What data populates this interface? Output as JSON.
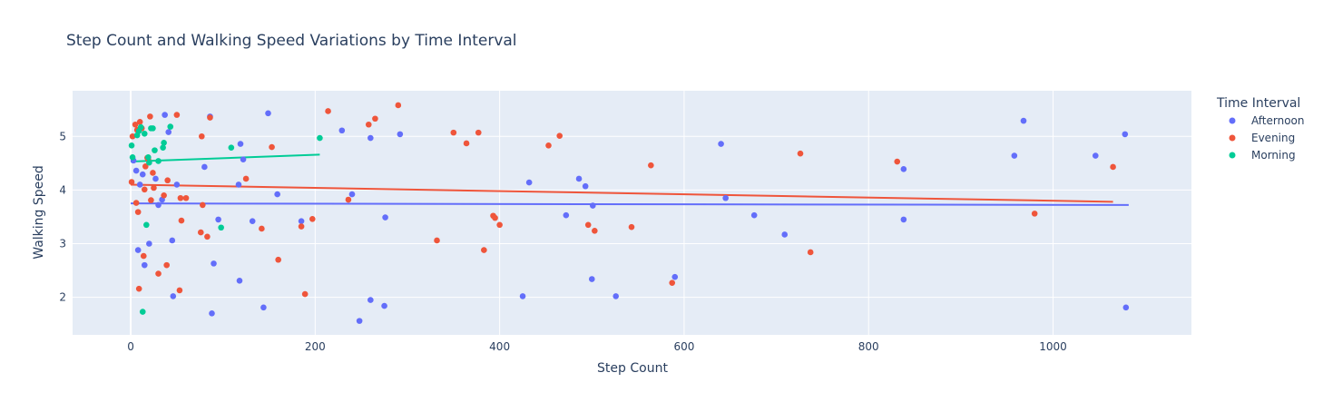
{
  "chart_data": {
    "type": "scatter",
    "title": "Step Count and Walking Speed Variations by Time Interval",
    "xlabel": "Step Count",
    "ylabel": "Walking Speed",
    "xlim": [
      -63,
      1150
    ],
    "ylim": [
      1.3,
      5.85
    ],
    "xticks": [
      0,
      200,
      400,
      600,
      800,
      1000
    ],
    "yticks": [
      2,
      3,
      4,
      5
    ],
    "grid": true,
    "legend_title": "Time Interval",
    "legend_position": "top-right",
    "series": [
      {
        "name": "Afternoon",
        "color": "#636efa",
        "points": [
          [
            3,
            4.55
          ],
          [
            6,
            4.36
          ],
          [
            8,
            2.88
          ],
          [
            10,
            4.1
          ],
          [
            13,
            4.29
          ],
          [
            15,
            2.6
          ],
          [
            20,
            3.0
          ],
          [
            27,
            4.21
          ],
          [
            30,
            3.72
          ],
          [
            34,
            3.82
          ],
          [
            37,
            5.4
          ],
          [
            41,
            5.08
          ],
          [
            45,
            3.06
          ],
          [
            46,
            2.02
          ],
          [
            50,
            4.1
          ],
          [
            80,
            4.43
          ],
          [
            86,
            5.37
          ],
          [
            88,
            1.7
          ],
          [
            90,
            2.63
          ],
          [
            95,
            3.45
          ],
          [
            117,
            4.1
          ],
          [
            118,
            2.31
          ],
          [
            119,
            4.86
          ],
          [
            122,
            4.57
          ],
          [
            132,
            3.42
          ],
          [
            144,
            1.81
          ],
          [
            149,
            5.43
          ],
          [
            159,
            3.92
          ],
          [
            185,
            3.42
          ],
          [
            229,
            5.11
          ],
          [
            240,
            3.92
          ],
          [
            248,
            1.56
          ],
          [
            260,
            1.95
          ],
          [
            260,
            4.97
          ],
          [
            275,
            1.84
          ],
          [
            276,
            3.49
          ],
          [
            292,
            5.04
          ],
          [
            425,
            2.02
          ],
          [
            432,
            4.14
          ],
          [
            472,
            3.53
          ],
          [
            486,
            4.21
          ],
          [
            493,
            4.07
          ],
          [
            500,
            2.34
          ],
          [
            501,
            3.71
          ],
          [
            526,
            2.02
          ],
          [
            590,
            2.38
          ],
          [
            640,
            4.86
          ],
          [
            645,
            3.85
          ],
          [
            676,
            3.53
          ],
          [
            709,
            3.17
          ],
          [
            838,
            4.39
          ],
          [
            838,
            3.45
          ],
          [
            958,
            4.64
          ],
          [
            968,
            5.29
          ],
          [
            1046,
            4.64
          ],
          [
            1078,
            5.04
          ],
          [
            1079,
            1.81
          ]
        ],
        "trend": [
          [
            0,
            3.75
          ],
          [
            1082,
            3.72
          ]
        ]
      },
      {
        "name": "Evening",
        "color": "#ef553b",
        "points": [
          [
            1,
            4.15
          ],
          [
            2,
            5.0
          ],
          [
            5,
            5.22
          ],
          [
            6,
            3.76
          ],
          [
            7,
            5.12
          ],
          [
            8,
            3.59
          ],
          [
            9,
            2.16
          ],
          [
            10,
            5.27
          ],
          [
            12,
            5.15
          ],
          [
            14,
            2.77
          ],
          [
            15,
            4.01
          ],
          [
            16,
            4.44
          ],
          [
            18,
            4.6
          ],
          [
            19,
            4.57
          ],
          [
            21,
            5.37
          ],
          [
            22,
            3.81
          ],
          [
            24,
            4.32
          ],
          [
            25,
            4.04
          ],
          [
            30,
            2.44
          ],
          [
            36,
            3.9
          ],
          [
            39,
            2.6
          ],
          [
            40,
            4.18
          ],
          [
            50,
            5.4
          ],
          [
            53,
            2.13
          ],
          [
            54,
            3.85
          ],
          [
            55,
            3.43
          ],
          [
            60,
            3.85
          ],
          [
            77,
            5.0
          ],
          [
            76,
            3.21
          ],
          [
            78,
            3.72
          ],
          [
            83,
            3.13
          ],
          [
            86,
            5.35
          ],
          [
            125,
            4.21
          ],
          [
            142,
            3.28
          ],
          [
            153,
            4.8
          ],
          [
            160,
            2.7
          ],
          [
            185,
            3.32
          ],
          [
            189,
            2.06
          ],
          [
            197,
            3.46
          ],
          [
            214,
            5.47
          ],
          [
            236,
            3.82
          ],
          [
            258,
            5.22
          ],
          [
            265,
            5.33
          ],
          [
            290,
            5.58
          ],
          [
            332,
            3.06
          ],
          [
            350,
            5.07
          ],
          [
            364,
            4.87
          ],
          [
            377,
            5.07
          ],
          [
            383,
            2.88
          ],
          [
            393,
            3.52
          ],
          [
            395,
            3.48
          ],
          [
            400,
            3.35
          ],
          [
            453,
            4.83
          ],
          [
            465,
            5.01
          ],
          [
            496,
            3.35
          ],
          [
            503,
            3.24
          ],
          [
            543,
            3.31
          ],
          [
            564,
            4.46
          ],
          [
            587,
            2.27
          ],
          [
            726,
            4.68
          ],
          [
            737,
            2.84
          ],
          [
            831,
            4.53
          ],
          [
            980,
            3.56
          ],
          [
            1065,
            4.43
          ]
        ],
        "trend": [
          [
            0,
            4.1
          ],
          [
            1065,
            3.78
          ]
        ]
      },
      {
        "name": "Morning",
        "color": "#00cc96",
        "points": [
          [
            1,
            4.83
          ],
          [
            2,
            4.61
          ],
          [
            7,
            5.02
          ],
          [
            9,
            5.1
          ],
          [
            11,
            5.17
          ],
          [
            13,
            1.73
          ],
          [
            15,
            5.05
          ],
          [
            17,
            3.35
          ],
          [
            19,
            4.61
          ],
          [
            20,
            4.51
          ],
          [
            22,
            5.15
          ],
          [
            24,
            5.15
          ],
          [
            26,
            4.74
          ],
          [
            30,
            4.54
          ],
          [
            35,
            4.79
          ],
          [
            36,
            4.88
          ],
          [
            43,
            5.18
          ],
          [
            98,
            3.3
          ],
          [
            109,
            4.79
          ],
          [
            205,
            4.97
          ]
        ],
        "trend": [
          [
            0,
            4.53
          ],
          [
            205,
            4.66
          ]
        ]
      }
    ]
  }
}
